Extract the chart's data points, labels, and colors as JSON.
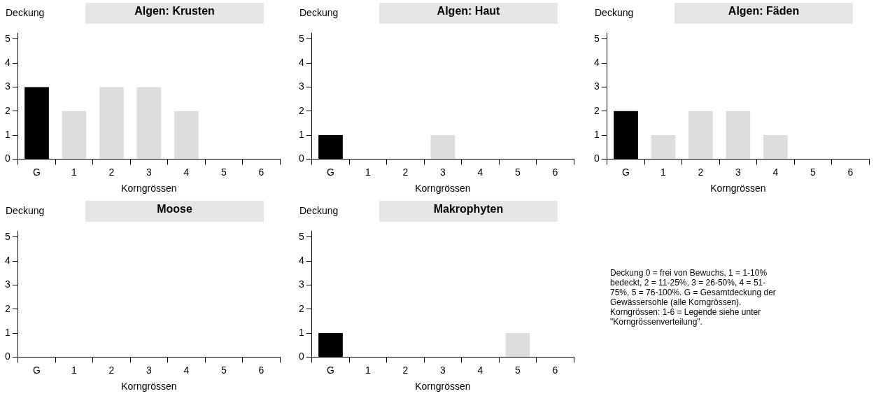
{
  "chart_data": [
    {
      "type": "bar",
      "title": "Algen: Krusten",
      "xlabel": "Korngrössen",
      "ylabel": "Deckung",
      "categories": [
        "G",
        "1",
        "2",
        "3",
        "4",
        "5",
        "6"
      ],
      "values": [
        3,
        2,
        3,
        3,
        2,
        0,
        0
      ],
      "colors": [
        "#000000",
        "#dddddd",
        "#dddddd",
        "#dddddd",
        "#dddddd",
        "#dddddd",
        "#dddddd"
      ],
      "ylim": [
        0,
        5.25
      ],
      "yticks": [
        0,
        1,
        2,
        3,
        4,
        5
      ],
      "legend": false,
      "grid": false
    },
    {
      "type": "bar",
      "title": "Algen: Haut",
      "xlabel": "Korngrössen",
      "ylabel": "Deckung",
      "categories": [
        "G",
        "1",
        "2",
        "3",
        "4",
        "5",
        "6"
      ],
      "values": [
        1,
        0,
        0,
        1,
        0,
        0,
        0
      ],
      "colors": [
        "#000000",
        "#dddddd",
        "#dddddd",
        "#dddddd",
        "#dddddd",
        "#dddddd",
        "#dddddd"
      ],
      "ylim": [
        0,
        5.25
      ],
      "yticks": [
        0,
        1,
        2,
        3,
        4,
        5
      ],
      "legend": false,
      "grid": false
    },
    {
      "type": "bar",
      "title": "Algen: Fäden",
      "xlabel": "Korngrössen",
      "ylabel": "Deckung",
      "categories": [
        "G",
        "1",
        "2",
        "3",
        "4",
        "5",
        "6"
      ],
      "values": [
        2,
        1,
        2,
        2,
        1,
        0,
        0
      ],
      "colors": [
        "#000000",
        "#dddddd",
        "#dddddd",
        "#dddddd",
        "#dddddd",
        "#dddddd",
        "#dddddd"
      ],
      "ylim": [
        0,
        5.25
      ],
      "yticks": [
        0,
        1,
        2,
        3,
        4,
        5
      ],
      "legend": false,
      "grid": false
    },
    {
      "type": "bar",
      "title": "Moose",
      "xlabel": "Korngrössen",
      "ylabel": "Deckung",
      "categories": [
        "G",
        "1",
        "2",
        "3",
        "4",
        "5",
        "6"
      ],
      "values": [
        0,
        0,
        0,
        0,
        0,
        0,
        0
      ],
      "colors": [
        "#000000",
        "#dddddd",
        "#dddddd",
        "#dddddd",
        "#dddddd",
        "#dddddd",
        "#dddddd"
      ],
      "ylim": [
        0,
        5.25
      ],
      "yticks": [
        0,
        1,
        2,
        3,
        4,
        5
      ],
      "legend": false,
      "grid": false
    },
    {
      "type": "bar",
      "title": "Makrophyten",
      "xlabel": "Korngrössen",
      "ylabel": "Deckung",
      "categories": [
        "G",
        "1",
        "2",
        "3",
        "4",
        "5",
        "6"
      ],
      "values": [
        1,
        0,
        0,
        0,
        0,
        1,
        0
      ],
      "colors": [
        "#000000",
        "#dddddd",
        "#dddddd",
        "#dddddd",
        "#dddddd",
        "#dddddd",
        "#dddddd"
      ],
      "ylim": [
        0,
        5.25
      ],
      "yticks": [
        0,
        1,
        2,
        3,
        4,
        5
      ],
      "legend": false,
      "grid": false
    },
    {
      "type": "other",
      "annotations": [
        "Deckung 0 = frei von Bewuchs, 1 = 1-10% bedeckt, 2 = 11-25%, 3 = 26-50%, 4 = 51-75%, 5 = 76-100%. G = Gesamtdeckung der Gewässersohle (alle Korngrössen). Korngrössen: 1-6 = Legende siehe unter \"Korngrössenverteilung\"."
      ]
    }
  ]
}
